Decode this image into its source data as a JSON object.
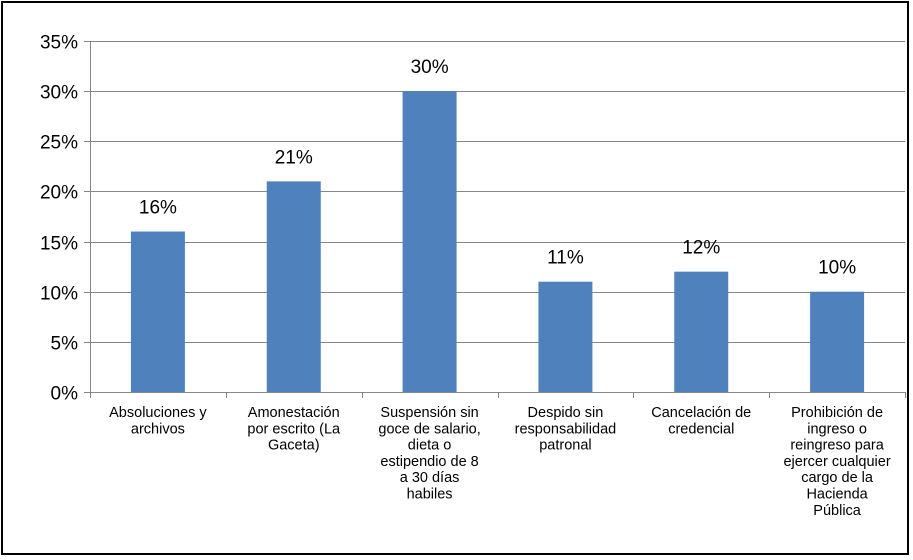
{
  "chart_data": {
    "type": "bar",
    "categories": [
      [
        "Absoluciones y",
        "archivos"
      ],
      [
        "Amonestación",
        "por escrito (La",
        "Gaceta)"
      ],
      [
        "Suspensión sin",
        "goce de salario,",
        "dieta o",
        "estipendio de 8",
        "a 30 días",
        "habiles"
      ],
      [
        "Despido sin",
        "responsabilidad",
        "patronal"
      ],
      [
        "Cancelación de",
        "credencial"
      ],
      [
        "Prohibición de",
        "ingreso o",
        "reingreso para",
        "ejercer cualquier",
        "cargo de la",
        "Hacienda",
        "Pública"
      ]
    ],
    "values": [
      16,
      21,
      30,
      11,
      12,
      10
    ],
    "data_labels": [
      "16%",
      "21%",
      "30%",
      "11%",
      "12%",
      "10%"
    ],
    "ylim": [
      0,
      35
    ],
    "y_ticks": [
      0,
      5,
      10,
      15,
      20,
      25,
      30,
      35
    ],
    "y_tick_labels": [
      "0%",
      "5%",
      "10%",
      "15%",
      "20%",
      "25%",
      "30%",
      "35%"
    ],
    "grid": true,
    "legend": "none",
    "colors": {
      "bar": "#4F81BD",
      "grid": "#868686",
      "axis": "#868686"
    }
  }
}
